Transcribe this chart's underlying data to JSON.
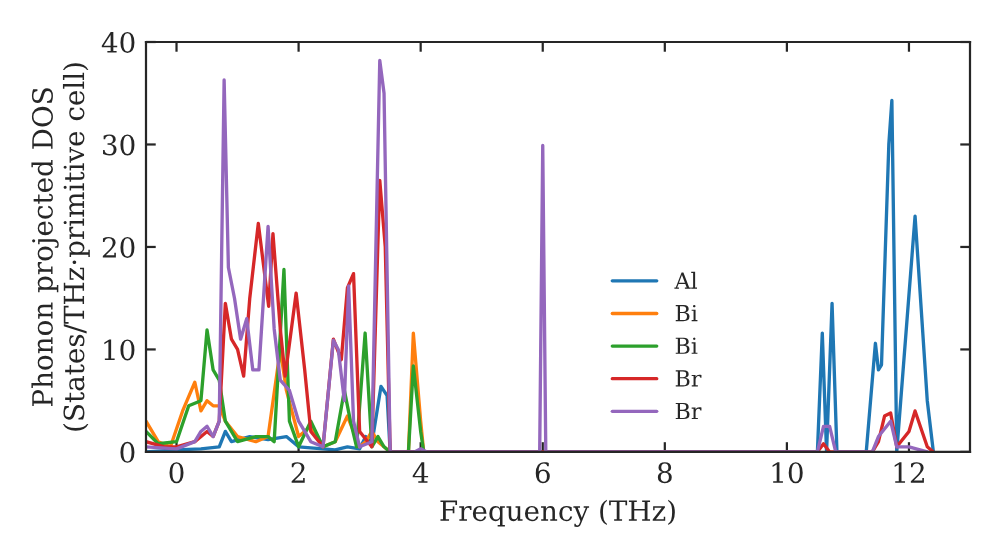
{
  "chart_data": {
    "type": "line",
    "xlabel": "Frequency (THz)",
    "ylabel": "Phonon projected DOS\n(States/THz·primitive cell)",
    "xlim": [
      -0.5,
      13
    ],
    "ylim": [
      0,
      40
    ],
    "xticks": [
      0,
      2,
      4,
      6,
      8,
      10,
      12
    ],
    "yticks": [
      0,
      10,
      20,
      30,
      40
    ],
    "grid": false,
    "legend": "bottom",
    "series": [
      {
        "name": "Al",
        "color": "#1f77b4",
        "x": [
          -0.5,
          0,
          0.4,
          0.7,
          0.8,
          0.9,
          1.2,
          1.5,
          1.8,
          2.0,
          2.4,
          2.6,
          2.8,
          3.0,
          3.1,
          3.2,
          3.35,
          3.45,
          3.5,
          4.0,
          10.5,
          10.58,
          10.65,
          10.74,
          10.82,
          11.3,
          11.45,
          11.5,
          11.55,
          11.67,
          11.72,
          11.8,
          12.1,
          12.3,
          12.4
        ],
        "values": [
          0,
          0.2,
          0.3,
          0.5,
          2,
          1,
          1.5,
          1.2,
          1.5,
          0.5,
          0.3,
          0.2,
          0.5,
          0.3,
          1.5,
          0.8,
          6.4,
          5.5,
          0,
          0,
          0,
          11.6,
          0,
          14.5,
          0,
          0,
          10.6,
          8,
          8.5,
          30,
          34.3,
          0,
          23,
          5,
          0
        ]
      },
      {
        "name": "Bi",
        "color": "#ff7f0e",
        "x": [
          -0.5,
          -0.3,
          -0.1,
          0.1,
          0.3,
          0.4,
          0.5,
          0.6,
          0.7,
          0.8,
          1.0,
          1.3,
          1.5,
          1.7,
          1.8,
          2.0,
          2.2,
          2.4,
          2.6,
          2.8,
          3.0,
          3.1,
          3.2,
          3.3,
          3.5,
          3.8,
          3.88,
          4.0,
          4.05
        ],
        "values": [
          3,
          1,
          0.5,
          4,
          6.8,
          4,
          5,
          4.5,
          4.5,
          3,
          1.5,
          1,
          1.5,
          10,
          6,
          1.5,
          2.5,
          0.5,
          1,
          3.5,
          0.5,
          1,
          2,
          1,
          0,
          0,
          11.6,
          3,
          0
        ]
      },
      {
        "name": "Bi",
        "color": "#2ca02c",
        "x": [
          -0.5,
          -0.3,
          0,
          0.2,
          0.4,
          0.5,
          0.6,
          0.7,
          0.8,
          1.0,
          1.3,
          1.5,
          1.6,
          1.76,
          1.85,
          2.0,
          2.2,
          2.4,
          2.6,
          2.75,
          2.85,
          2.95,
          3.09,
          3.2,
          3.3,
          3.4,
          3.5,
          3.8,
          3.88,
          4.0,
          4.05
        ],
        "values": [
          2,
          0.8,
          1,
          4.5,
          5,
          11.9,
          8,
          7,
          3,
          1,
          1.5,
          1.5,
          1,
          17.8,
          3,
          0.5,
          3,
          0.5,
          1,
          6,
          3,
          0.5,
          11.6,
          0.5,
          1.5,
          0.5,
          0,
          0,
          8.4,
          2,
          0
        ]
      },
      {
        "name": "Br",
        "color": "#d62728",
        "x": [
          -0.5,
          -0.2,
          0,
          0.3,
          0.5,
          0.6,
          0.7,
          0.8,
          0.9,
          1.0,
          1.1,
          1.2,
          1.34,
          1.51,
          1.58,
          1.7,
          1.78,
          1.96,
          2.1,
          2.2,
          2.4,
          2.57,
          2.7,
          2.8,
          2.9,
          3.0,
          3.2,
          3.33,
          3.42,
          3.5,
          5.95,
          6.0,
          6.05,
          10.5,
          10.6,
          10.7,
          11.4,
          11.5,
          11.6,
          11.7,
          11.8,
          12.0,
          12.1,
          12.3,
          12.4
        ],
        "values": [
          1,
          0.5,
          0.5,
          1,
          2,
          1.5,
          3,
          14.5,
          11,
          10,
          7.4,
          15,
          22.3,
          14.2,
          21.3,
          12,
          7.4,
          15.5,
          8,
          2,
          0.5,
          11,
          9,
          16,
          17.4,
          2,
          0.5,
          26.5,
          20,
          0,
          0,
          null,
          0,
          0,
          0.8,
          0,
          0,
          1,
          3.5,
          3.8,
          0.5,
          2,
          4,
          0.5,
          0
        ]
      },
      {
        "name": "Br",
        "color": "#9467bd",
        "x": [
          -0.5,
          0,
          0.3,
          0.4,
          0.5,
          0.6,
          0.7,
          0.78,
          0.85,
          0.95,
          1.05,
          1.15,
          1.25,
          1.35,
          1.5,
          1.6,
          1.7,
          1.85,
          2.0,
          2.2,
          2.4,
          2.57,
          2.65,
          2.75,
          2.82,
          2.9,
          3.0,
          3.2,
          3.33,
          3.4,
          3.5,
          3.9,
          4.0,
          4.1,
          5.95,
          6.0,
          6.05,
          10.5,
          10.6,
          10.7,
          10.8,
          11.4,
          11.5,
          11.7,
          11.8,
          12.0,
          12.3
        ],
        "values": [
          0.5,
          0.3,
          1,
          2,
          2.5,
          1.5,
          3,
          36.3,
          18,
          15,
          11,
          13,
          8,
          8,
          22,
          12,
          7,
          6,
          3,
          1,
          0.5,
          10.9,
          10,
          5,
          16.2,
          3,
          0.5,
          1,
          38.2,
          35,
          0,
          0,
          0.3,
          0,
          0,
          29.9,
          0,
          0,
          2.5,
          2.5,
          0,
          0,
          1.5,
          3,
          0.5,
          0.5,
          0
        ]
      }
    ]
  }
}
